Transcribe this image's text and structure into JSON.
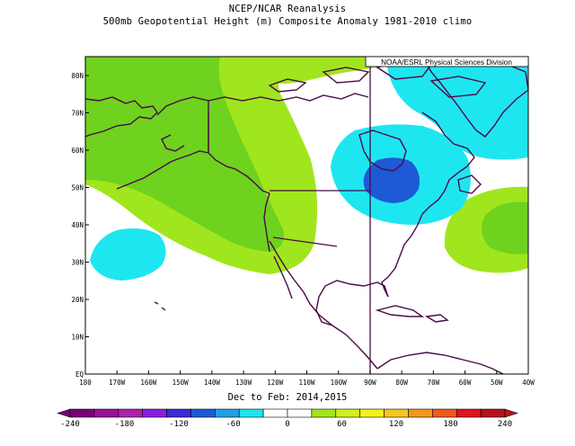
{
  "title_line1": "NCEP/NCAR Reanalysis",
  "title_line2": "500mb Geopotential Height (m) Composite Anomaly 1981-2010 climo",
  "credit": "NOAA/ESRL Physical Sciences Division",
  "subtitle": "Dec to Feb: 2014,2015",
  "lat_labels": [
    "80N",
    "70N",
    "60N",
    "50N",
    "40N",
    "30N",
    "20N",
    "10N",
    "EQ"
  ],
  "lon_labels": [
    "180",
    "170W",
    "160W",
    "150W",
    "140W",
    "130W",
    "120W",
    "110W",
    "100W",
    "90W",
    "80W",
    "70W",
    "60W",
    "50W",
    "40W"
  ],
  "colorbar": {
    "tick_labels": [
      "-240",
      "-180",
      "-120",
      "-60",
      "0",
      "60",
      "120",
      "180",
      "240"
    ],
    "colors": [
      "#7a007a",
      "#9a129a",
      "#b01eb0",
      "#8a1ee0",
      "#3a2ad8",
      "#1e5ad6",
      "#1ea0e8",
      "#1ee6f0",
      "#ffffff",
      "#ffffff",
      "#a0e61e",
      "#d2f01e",
      "#f5f01e",
      "#f5c81e",
      "#f5961e",
      "#f05a1e",
      "#e0141e",
      "#b4141e"
    ],
    "min_color": "#7a007a",
    "max_color": "#b4141e"
  },
  "anomaly_colors": {
    "neg_120_60": "#1e5ad6",
    "neg_60_30": "#1ee6f0",
    "pos_30_60": "#a0e61e",
    "pos_60_90": "#6ed21e",
    "neutral": "#ffffff"
  },
  "coast_color": "#4b0a46"
}
